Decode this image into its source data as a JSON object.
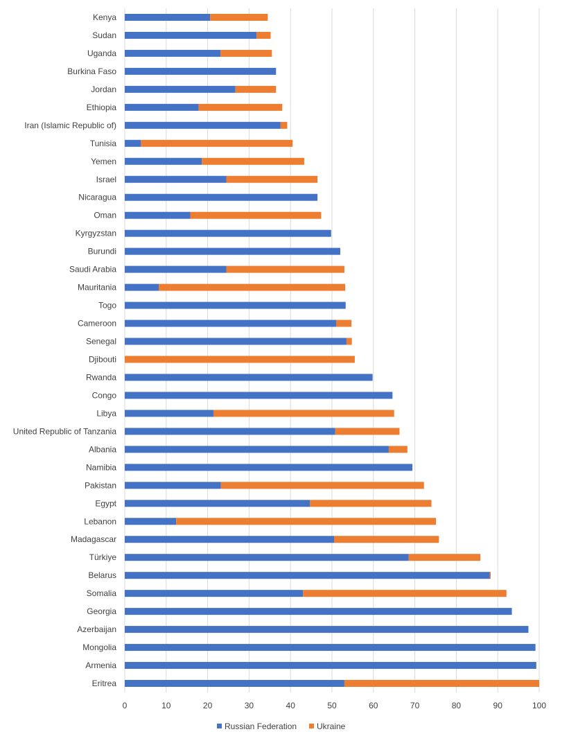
{
  "chart_data": {
    "type": "bar",
    "orientation": "horizontal",
    "stacked": true,
    "categories": [
      "Kenya",
      "Sudan",
      "Uganda",
      "Burkina Faso",
      "Jordan",
      "Ethiopia",
      "Iran (Islamic Republic of)",
      "Tunisia",
      "Yemen",
      "Israel",
      "Nicaragua",
      "Oman",
      "Kyrgyzstan",
      "Burundi",
      "Saudi Arabia",
      "Mauritania",
      "Togo",
      "Cameroon",
      "Senegal",
      "Djibouti",
      "Rwanda",
      "Congo",
      "Libya",
      "United Republic of Tanzania",
      "Albania",
      "Namibia",
      "Pakistan",
      "Egypt",
      "Lebanon",
      "Madagascar",
      "Türkiye",
      "Belarus",
      "Somalia",
      "Georgia",
      "Azerbaijan",
      "Mongolia",
      "Armenia",
      "Eritrea"
    ],
    "series": [
      {
        "name": "Russian Federation",
        "color": "#4472C4",
        "values": [
          20.6,
          31.8,
          23.1,
          36.5,
          26.7,
          17.8,
          37.6,
          3.9,
          18.6,
          24.5,
          46.5,
          15.8,
          49.8,
          52.0,
          24.5,
          8.2,
          53.3,
          51.0,
          53.5,
          0,
          59.8,
          64.6,
          21.4,
          50.8,
          63.7,
          69.4,
          23.2,
          44.7,
          12.4,
          50.5,
          68.5,
          88.1,
          43.0,
          93.4,
          97.4,
          99.1,
          99.3,
          53.0
        ]
      },
      {
        "name": "Ukraine",
        "color": "#ED7D31",
        "values": [
          13.9,
          3.4,
          12.4,
          0,
          9.8,
          20.2,
          1.6,
          36.6,
          24.7,
          22.0,
          0,
          31.6,
          0,
          0,
          28.5,
          45.0,
          0,
          3.7,
          1.3,
          55.5,
          0,
          0,
          43.6,
          15.5,
          4.5,
          0,
          49.0,
          29.3,
          62.7,
          25.3,
          17.3,
          0.2,
          49.1,
          0,
          0,
          0,
          0,
          47.0
        ]
      }
    ],
    "x_ticks": [
      "0",
      "10",
      "20",
      "30",
      "40",
      "50",
      "60",
      "70",
      "80",
      "90",
      "100"
    ],
    "xlim": [
      0,
      100
    ],
    "grid": true,
    "legend_position": "bottom"
  }
}
